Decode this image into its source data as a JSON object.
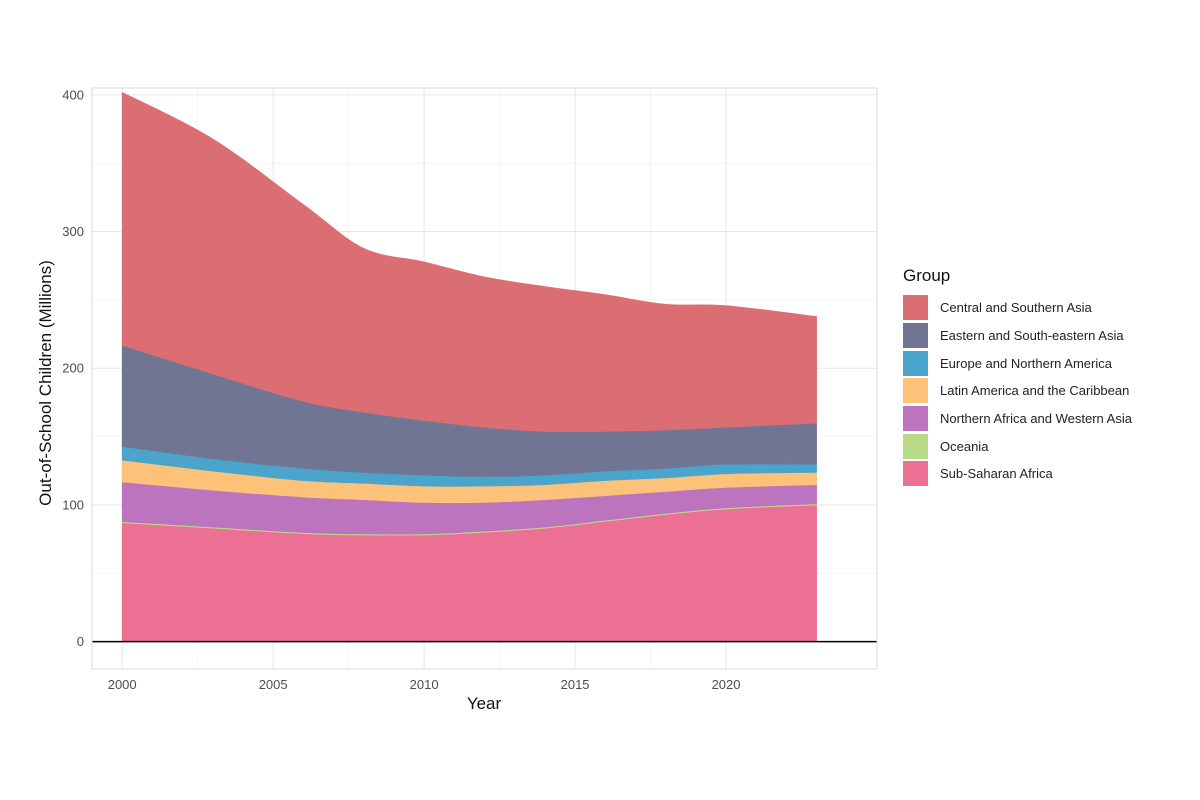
{
  "chart_data": {
    "type": "area",
    "stacked": true,
    "title": "",
    "xlabel": "Year",
    "ylabel": "Out-of-School Children (Millions)",
    "xlim": [
      1999,
      2025
    ],
    "ylim": [
      -20,
      405
    ],
    "x_ticks": [
      2000,
      2005,
      2010,
      2015,
      2020
    ],
    "y_ticks": [
      0,
      100,
      200,
      300,
      400
    ],
    "grid": true,
    "legend_title": "Group",
    "legend_position": "right",
    "x": [
      2000,
      2003,
      2006,
      2008,
      2010,
      2012,
      2014,
      2016,
      2018,
      2020,
      2023
    ],
    "series": [
      {
        "name": "Sub-Saharan Africa",
        "color": "#EC6F94",
        "values": [
          87,
          83,
          79,
          78,
          78,
          80,
          83,
          88,
          93,
          97,
          100
        ]
      },
      {
        "name": "Oceania",
        "color": "#B8DB87",
        "values": [
          0.8,
          0.8,
          0.8,
          0.8,
          0.8,
          0.8,
          0.8,
          0.8,
          0.8,
          0.8,
          0.8
        ]
      },
      {
        "name": "Northern Africa and Western Asia",
        "color": "#BD74BE",
        "values": [
          29,
          27,
          26,
          25,
          23,
          21,
          20,
          18,
          16,
          15,
          14
        ]
      },
      {
        "name": "Latin America and the Caribbean",
        "color": "#FCC27A",
        "values": [
          16,
          14,
          12,
          12,
          12,
          12,
          11,
          11,
          10,
          10,
          9
        ]
      },
      {
        "name": "Europe and Northern America",
        "color": "#4BA4CB",
        "values": [
          10,
          9,
          9,
          8,
          8,
          7,
          7,
          7,
          7,
          7,
          6
        ]
      },
      {
        "name": "Eastern and South-eastern Asia",
        "color": "#6F7593",
        "values": [
          74,
          62,
          49,
          44,
          40,
          36,
          32,
          29,
          28,
          27,
          30
        ]
      },
      {
        "name": "Central and Southern Asia",
        "color": "#DB6E72",
        "values": [
          185,
          172,
          144,
          120,
          116,
          110,
          106,
          100,
          92,
          89,
          78
        ]
      }
    ]
  },
  "legend": {
    "title": "Group",
    "items": [
      {
        "label": "Central and Southern Asia",
        "color": "#DB6E72"
      },
      {
        "label": "Eastern and South-eastern Asia",
        "color": "#6F7593"
      },
      {
        "label": "Europe and Northern America",
        "color": "#4BA4CB"
      },
      {
        "label": "Latin America and the Caribbean",
        "color": "#FCC27A"
      },
      {
        "label": "Northern Africa and Western Asia",
        "color": "#BD74BE"
      },
      {
        "label": "Oceania",
        "color": "#B8DB87"
      },
      {
        "label": "Sub-Saharan Africa",
        "color": "#EC6F94"
      }
    ]
  }
}
